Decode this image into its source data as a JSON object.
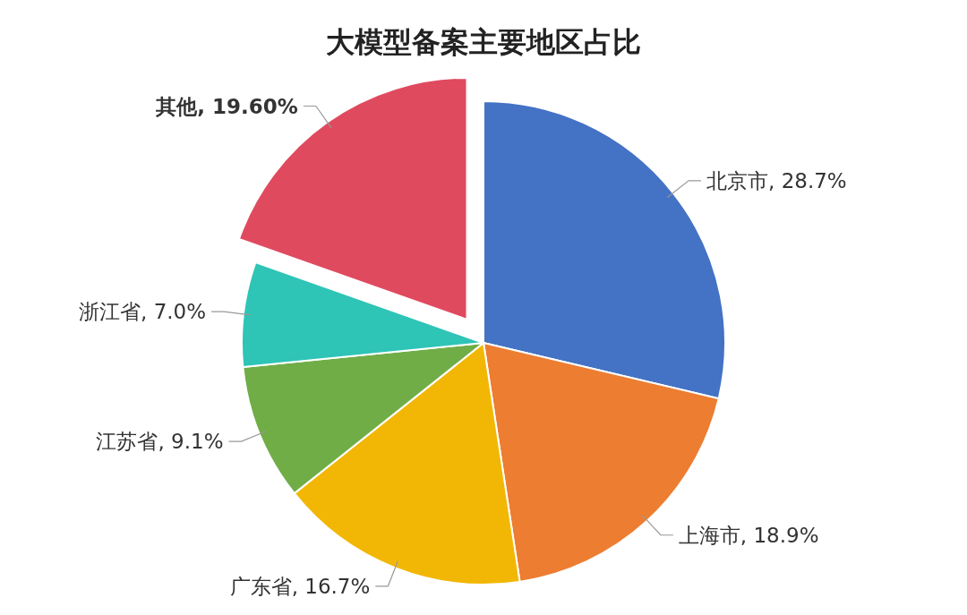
{
  "chart_data": {
    "type": "pie",
    "title": "大模型备案主要地区占比",
    "categories": [
      "北京市",
      "上海市",
      "广东省",
      "江苏省",
      "浙江省",
      "其他"
    ],
    "values": [
      28.7,
      18.9,
      16.7,
      9.1,
      7.0,
      19.6
    ],
    "value_labels": [
      "28.7%",
      "18.9%",
      "16.7%",
      "9.1%",
      "7.0%",
      "19.60%"
    ],
    "colors": [
      "#4472c4",
      "#ed7d31",
      "#f2b705",
      "#70ad47",
      "#2ec4b6",
      "#e04a5f"
    ]
  }
}
